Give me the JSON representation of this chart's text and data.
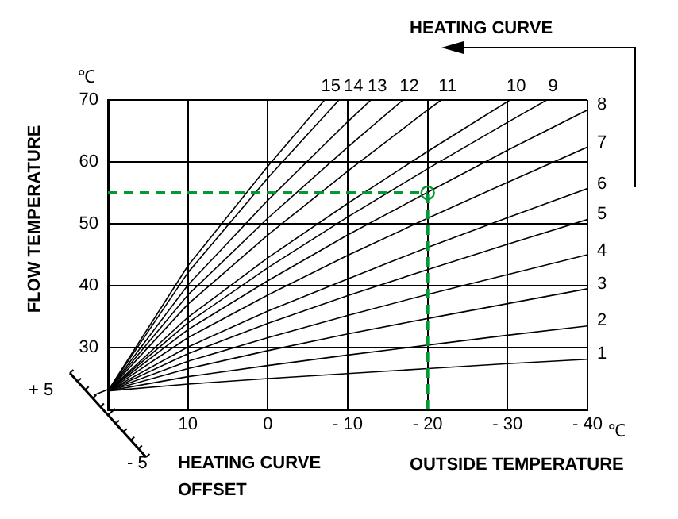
{
  "chart_data": {
    "type": "line",
    "xlabel": "OUTSIDE TEMPERATURE",
    "ylabel": "FLOW TEMPERATURE",
    "annotations": [
      "HEATING CURVE",
      "℃",
      "℃",
      "+ 5",
      "- 5",
      "HEATING CURVE OFFSET"
    ],
    "xlim": [
      20,
      -40
    ],
    "xticks": [
      {
        "value": 20,
        "label": null
      },
      10,
      0,
      {
        "value": -10,
        "label": "- 10"
      },
      {
        "value": -20,
        "label": "- 20"
      },
      {
        "value": -30,
        "label": "- 30"
      },
      {
        "value": -40,
        "label": "- 40"
      }
    ],
    "ylim": [
      20,
      70
    ],
    "yticks": [
      30,
      40,
      50,
      60,
      70
    ],
    "grid": true,
    "legend": false,
    "marker": "none",
    "line_style": "solid",
    "series": [
      {
        "name": "1",
        "color": "#000000",
        "x": [
          20,
          10,
          0,
          -10,
          -20,
          -30,
          -40
        ],
        "values": [
          23,
          24.1,
          25.0,
          25.8,
          26.6,
          27.4,
          28.1
        ]
      },
      {
        "name": "2",
        "color": "#000000",
        "x": [
          20,
          10,
          0,
          -10,
          -20,
          -30,
          -40
        ],
        "values": [
          23,
          25.3,
          27.1,
          28.8,
          30.4,
          32.0,
          33.5
        ]
      },
      {
        "name": "3",
        "color": "#000000",
        "x": [
          20,
          10,
          0,
          -10,
          -20,
          -30,
          -40
        ],
        "values": [
          23,
          26.6,
          29.5,
          32.2,
          34.7,
          37.1,
          39.5
        ]
      },
      {
        "name": "4",
        "color": "#000000",
        "x": [
          20,
          10,
          0,
          -10,
          -20,
          -30,
          -40
        ],
        "values": [
          23,
          27.8,
          31.6,
          35.2,
          38.6,
          41.8,
          45
        ]
      },
      {
        "name": "5",
        "color": "#000000",
        "x": [
          20,
          10,
          0,
          -10,
          -20,
          -30,
          -40
        ],
        "values": [
          23,
          29.0,
          33.9,
          38.4,
          42.6,
          46.7,
          50.7
        ]
      },
      {
        "name": "6",
        "color": "#000000",
        "x": [
          20,
          10,
          0,
          -10,
          -20,
          -30,
          -40
        ],
        "values": [
          23,
          30.1,
          35.9,
          41.1,
          46.2,
          51.0,
          55.7
        ]
      },
      {
        "name": "7",
        "color": "#000000",
        "x": [
          20,
          10,
          0,
          -10,
          -20,
          -30,
          -40
        ],
        "values": [
          23,
          31.6,
          38.5,
          44.9,
          50.9,
          56.7,
          62.4
        ]
      },
      {
        "name": "8",
        "color": "#000000",
        "x": [
          20,
          10,
          0,
          -10,
          -20,
          -30,
          -40
        ],
        "values": [
          23,
          32.9,
          40.8,
          48.2,
          55.1,
          61.9,
          68.4
        ]
      },
      {
        "name": "9",
        "color": "#000000",
        "x": [
          20,
          10,
          0,
          -10,
          -20,
          -30,
          -34.9
        ],
        "values": [
          23,
          34.0,
          42.9,
          51.1,
          58.9,
          66.4,
          70
        ]
      },
      {
        "name": "10",
        "color": "#000000",
        "x": [
          20,
          10,
          0,
          -10,
          -20,
          -30.3
        ],
        "values": [
          23,
          34.9,
          44.5,
          53.3,
          61.7,
          70
        ]
      },
      {
        "name": "11",
        "color": "#000000",
        "x": [
          20,
          10,
          0,
          -10,
          -20,
          -21.7
        ],
        "values": [
          23,
          37.0,
          48.2,
          58.5,
          68.4,
          70
        ]
      },
      {
        "name": "12",
        "color": "#000000",
        "x": [
          20,
          10,
          0,
          -10,
          -16.9
        ],
        "values": [
          23,
          38.5,
          50.9,
          62.4,
          70
        ]
      },
      {
        "name": "13",
        "color": "#000000",
        "x": [
          20,
          10,
          0,
          -10,
          -12.9
        ],
        "values": [
          23,
          40.1,
          53.8,
          66.5,
          70
        ]
      },
      {
        "name": "14",
        "color": "#000000",
        "x": [
          20,
          10,
          0,
          -8.9
        ],
        "values": [
          23,
          42.1,
          57.4,
          70
        ]
      },
      {
        "name": "15",
        "color": "#000000",
        "x": [
          20,
          10,
          0,
          -7.1
        ],
        "values": [
          23,
          43.2,
          59.3,
          70
        ]
      }
    ],
    "ref_lines": [
      {
        "axis": "y",
        "value": 55,
        "color": "#009933",
        "line_style": "dashed"
      },
      {
        "axis": "x",
        "value": -20,
        "color": "#009933",
        "line_style": "dashed"
      }
    ]
  }
}
